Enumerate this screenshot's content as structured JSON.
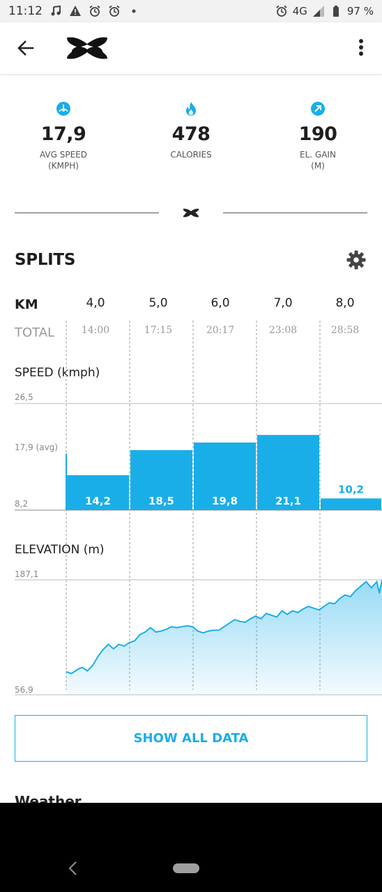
{
  "status_bar": {
    "time": "11:12",
    "network": "4G",
    "battery": "97 %",
    "icons": [
      "music-note-icon",
      "warning-icon",
      "alarm-icon",
      "alarm-icon",
      "dot-icon",
      "alarm-icon",
      "signal-icon",
      "battery-icon"
    ]
  },
  "app_bar": {
    "back_icon": "arrow-left-icon",
    "logo": "under-armour-logo",
    "menu_icon": "more-vert-icon"
  },
  "stats": [
    {
      "icon": "speedometer-icon",
      "value": "17,9",
      "label_line1": "AVG SPEED",
      "label_line2": "(KMPH)"
    },
    {
      "icon": "flame-icon",
      "value": "478",
      "label_line1": "CALORIES",
      "label_line2": ""
    },
    {
      "icon": "arrow-up-right-icon",
      "value": "190",
      "label_line1": "EL. GAIN",
      "label_line2": "(M)"
    }
  ],
  "splits": {
    "title": "SPLITS",
    "km_label": "KM",
    "total_label": "TOTAL",
    "km_values": [
      "4,0",
      "5,0",
      "6,0",
      "7,0",
      "8,0"
    ],
    "total_times": [
      "14:00",
      "17:15",
      "20:17",
      "23:08",
      "28:58"
    ]
  },
  "speed_section": {
    "label": "SPEED (kmph)",
    "axis_top": "26,5",
    "axis_avg": "17,9 (avg)",
    "axis_bottom": "8,2"
  },
  "elevation_section": {
    "label": "ELEVATION (m)",
    "axis_top": "187,1",
    "axis_bottom": "56,9"
  },
  "chart_data": [
    {
      "type": "bar",
      "title": "",
      "ylabel": "SPEED (kmph)",
      "categories": [
        "4,0",
        "5,0",
        "6,0",
        "7,0",
        "8,0"
      ],
      "values": [
        14.2,
        18.5,
        19.8,
        21.1,
        10.2
      ],
      "value_labels": [
        "14,2",
        "18,5",
        "19,8",
        "21,1",
        "10,2"
      ],
      "avg": 17.9,
      "ylim": [
        8.2,
        26.5
      ],
      "color": "#1aaee8"
    },
    {
      "type": "area",
      "title": "",
      "ylabel": "ELEVATION (m)",
      "ylim": [
        56.9,
        187.1
      ],
      "x": [
        3.0,
        3.1,
        3.2,
        3.3,
        3.4,
        3.5,
        3.6,
        3.7,
        3.8,
        3.9,
        4.0,
        4.1,
        4.2,
        4.3,
        4.4,
        4.5,
        4.6,
        4.7,
        4.8,
        4.9,
        5.0,
        5.1,
        5.2,
        5.3,
        5.4,
        5.5,
        5.6,
        5.7,
        5.8,
        5.9,
        6.0,
        6.1,
        6.2,
        6.3,
        6.4,
        6.5,
        6.6,
        6.7,
        6.8,
        6.9,
        7.0,
        7.1,
        7.2,
        7.3,
        7.4,
        7.5,
        7.6,
        7.7,
        7.8,
        7.9,
        8.0,
        8.1,
        8.2,
        8.3,
        8.4,
        8.5,
        8.6,
        8.7,
        8.8,
        8.9,
        8.95,
        9.0
      ],
      "values": [
        83,
        81,
        85,
        88,
        84,
        90,
        100,
        108,
        114,
        109,
        114,
        112,
        116,
        118,
        125,
        128,
        133,
        128,
        129,
        131,
        134,
        133,
        134,
        135,
        134,
        129,
        127,
        129,
        130,
        130,
        134,
        138,
        142,
        140,
        139,
        143,
        146,
        143,
        149,
        147,
        145,
        152,
        148,
        152,
        150,
        154,
        157,
        155,
        153,
        157,
        161,
        160,
        166,
        170,
        168,
        175,
        180,
        185,
        178,
        185,
        172,
        187
      ],
      "color": "#1aaee8"
    }
  ],
  "actions": {
    "show_all": "SHOW ALL DATA"
  },
  "next_section": "Weather",
  "nav": {
    "back_icon": "nav-back-icon",
    "home_icon": "nav-home-pill"
  }
}
